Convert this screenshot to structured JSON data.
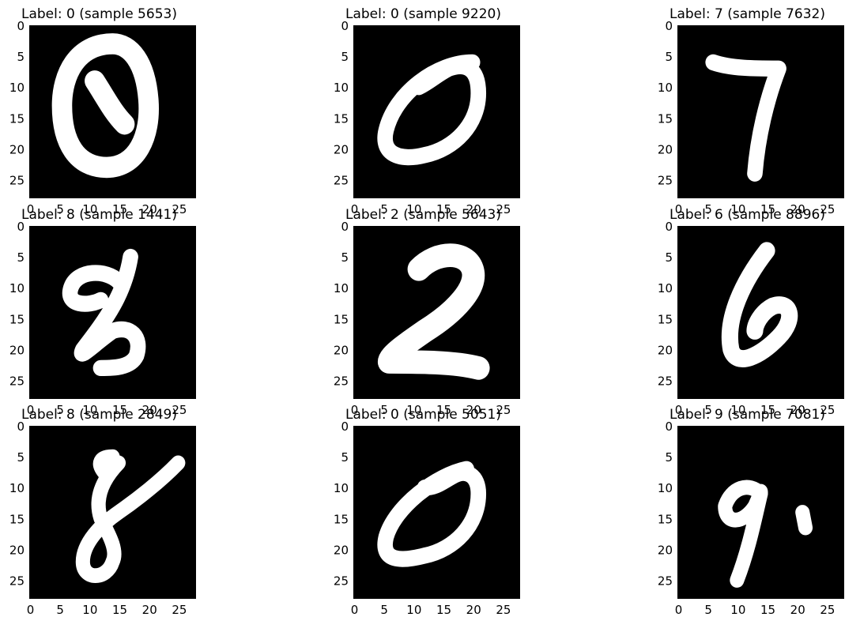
{
  "figure": {
    "panels": [
      {
        "title": "Label: 0 (sample 5653)",
        "digit": "0",
        "glyph": "0"
      },
      {
        "title": "Label: 0 (sample 9220)",
        "digit": "0",
        "glyph": "0"
      },
      {
        "title": "Label: 7 (sample 7632)",
        "digit": "7",
        "glyph": "7"
      },
      {
        "title": "Label: 8 (sample 1441)",
        "digit": "8",
        "glyph": "8a"
      },
      {
        "title": "Label: 2 (sample 5643)",
        "digit": "2",
        "glyph": "2"
      },
      {
        "title": "Label: 6 (sample 8896)",
        "digit": "6",
        "glyph": "6"
      },
      {
        "title": "Label: 8 (sample 2849)",
        "digit": "8",
        "glyph": "8b"
      },
      {
        "title": "Label: 0 (sample 5051)",
        "digit": "0",
        "glyph": "0b"
      },
      {
        "title": "Label: 9 (sample 7081)",
        "digit": "9",
        "glyph": "9"
      }
    ],
    "x_ticks": [
      "0",
      "5",
      "10",
      "15",
      "20",
      "25"
    ],
    "y_ticks": [
      "0",
      "5",
      "10",
      "15",
      "20",
      "25"
    ],
    "colors": {
      "background": "#000000",
      "stroke": "#ffffff",
      "page": "#ffffff"
    }
  }
}
